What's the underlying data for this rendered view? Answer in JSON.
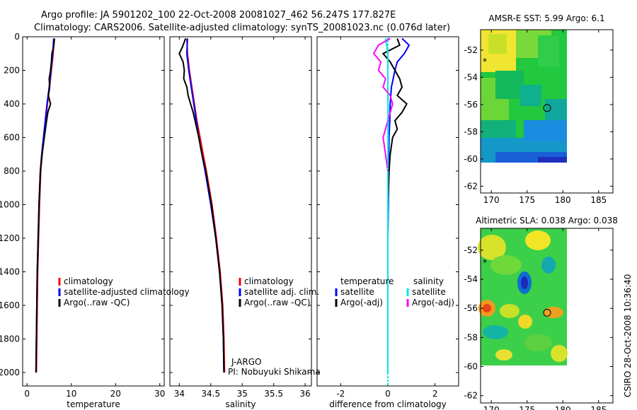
{
  "header": {
    "line1": "Argo profile: JA 5901202_100 22-Oct-2008 20081027_462 56.247S 177.827E",
    "line2": "Climatology: CARS2006. Satellite-adjusted climatology: synTS_20081023.nc (0.076d later)"
  },
  "timestamp": "CSIRO 28-Oct-2008 10:36:40",
  "colors": {
    "clim": "#ff0000",
    "sat": "#0000ff",
    "argo": "#000000",
    "sal_sat": "#00e5ee",
    "sal_argo": "#ff00ff"
  },
  "chart_data": [
    {
      "type": "line",
      "name": "temperature-profile",
      "xlabel": "temperature",
      "xlim": [
        -1,
        31
      ],
      "xticks": [
        "0",
        "10",
        "20",
        "30"
      ],
      "xtick_values": [
        0,
        10,
        20,
        30
      ],
      "ylim": [
        0,
        2080
      ],
      "yticks": [
        "0",
        "200",
        "400",
        "600",
        "800",
        "1000",
        "1200",
        "1400",
        "1600",
        "1800",
        "2000"
      ],
      "ytick_values": [
        0,
        200,
        400,
        600,
        800,
        1000,
        1200,
        1400,
        1600,
        1800,
        2000
      ],
      "legend": [
        "climatology",
        "satellite-adjusted climatology",
        "Argo(..raw -QC)"
      ],
      "series": [
        {
          "name": "climatology",
          "color": "#ff0000",
          "depth": [
            10,
            100,
            200,
            300,
            400,
            500,
            600,
            700,
            800,
            1000,
            1200,
            1400,
            1600,
            1800,
            2000
          ],
          "values": [
            6.1,
            5.9,
            5.5,
            5.1,
            4.6,
            4.2,
            3.8,
            3.4,
            3.1,
            2.8,
            2.6,
            2.4,
            2.3,
            2.2,
            2.1
          ]
        },
        {
          "name": "satellite-adjusted",
          "color": "#0000ff",
          "depth": [
            10,
            100,
            200,
            300,
            400,
            500,
            600,
            700,
            800,
            1000,
            1200,
            1400,
            1600,
            1800,
            2000
          ],
          "values": [
            6.0,
            5.8,
            5.4,
            5.0,
            4.5,
            4.1,
            3.7,
            3.3,
            3.0,
            2.7,
            2.5,
            2.3,
            2.2,
            2.1,
            2.0
          ]
        },
        {
          "name": "Argo(..raw -QC)",
          "color": "#000000",
          "depth": [
            10,
            60,
            100,
            150,
            200,
            250,
            300,
            350,
            400,
            450,
            500,
            600,
            700,
            800,
            1000,
            1200,
            1400,
            1600,
            1800,
            2000
          ],
          "values": [
            6.2,
            6.0,
            5.6,
            5.5,
            5.3,
            5.0,
            5.1,
            4.8,
            5.3,
            4.7,
            4.4,
            3.9,
            3.4,
            3.0,
            2.7,
            2.5,
            2.3,
            2.2,
            2.1,
            2.0
          ]
        }
      ]
    },
    {
      "type": "line",
      "name": "salinity-profile",
      "xlabel": "salinity",
      "xlim": [
        33.85,
        36.1
      ],
      "xticks": [
        "34",
        "34.5",
        "35",
        "35.5",
        "36"
      ],
      "xtick_values": [
        34,
        34.5,
        35,
        35.5,
        36
      ],
      "ylim": [
        0,
        2080
      ],
      "legend": [
        "climatology",
        "satellite adj. clim.",
        "Argo(..raw -QC)"
      ],
      "annotation": [
        "J-ARGO",
        "PI: Nobuyuki Shikama"
      ],
      "series": [
        {
          "name": "climatology",
          "color": "#ff0000",
          "depth": [
            10,
            100,
            200,
            300,
            400,
            500,
            600,
            700,
            800,
            1000,
            1200,
            1400,
            1600,
            1800,
            2000
          ],
          "values": [
            34.12,
            34.13,
            34.16,
            34.2,
            34.24,
            34.28,
            34.33,
            34.38,
            34.43,
            34.52,
            34.59,
            34.65,
            34.69,
            34.71,
            34.72
          ]
        },
        {
          "name": "satellite-adjusted",
          "color": "#0000ff",
          "depth": [
            10,
            100,
            200,
            300,
            400,
            500,
            600,
            700,
            800,
            1000,
            1200,
            1400,
            1600,
            1800,
            2000
          ],
          "values": [
            34.13,
            34.12,
            34.15,
            34.19,
            34.23,
            34.27,
            34.31,
            34.36,
            34.41,
            34.5,
            34.58,
            34.64,
            34.68,
            34.7,
            34.71
          ]
        },
        {
          "name": "Argo(..raw -QC)",
          "color": "#000000",
          "depth": [
            10,
            60,
            100,
            150,
            200,
            250,
            300,
            350,
            400,
            450,
            500,
            600,
            700,
            800,
            1000,
            1200,
            1400,
            1600,
            1800,
            2000
          ],
          "values": [
            34.1,
            34.05,
            34.0,
            34.06,
            34.08,
            34.07,
            34.12,
            34.14,
            34.18,
            34.22,
            34.25,
            34.31,
            34.36,
            34.42,
            34.51,
            34.58,
            34.64,
            34.68,
            34.7,
            34.71
          ]
        }
      ]
    },
    {
      "type": "line",
      "name": "difference-profile",
      "xlabel": "difference from climatology",
      "xlim": [
        -3,
        3
      ],
      "xticks": [
        "-2",
        "0",
        "2"
      ],
      "xtick_values": [
        -2,
        0,
        2
      ],
      "ylim": [
        0,
        2080
      ],
      "legend_left_title": "temperature",
      "legend_right_title": "salinity",
      "legend_left": [
        "satellite",
        "Argo(-adj)"
      ],
      "legend_right": [
        "satellite",
        "Argo(-adj)"
      ],
      "series": [
        {
          "name": "temperature satellite",
          "color": "#0000ff",
          "depth": [
            10,
            50,
            100,
            150,
            200,
            300,
            400,
            500,
            600,
            800,
            1000,
            1200,
            1400
          ],
          "values": [
            0.6,
            0.9,
            0.7,
            0.4,
            0.3,
            0.15,
            0.1,
            0.08,
            0.05,
            0.03,
            0.02,
            0.0,
            0.0
          ]
        },
        {
          "name": "temperature Argo",
          "color": "#000000",
          "depth": [
            10,
            50,
            100,
            150,
            200,
            250,
            300,
            350,
            400,
            450,
            500,
            550,
            600,
            700,
            800,
            900,
            1000,
            1200
          ],
          "values": [
            0.4,
            0.5,
            -0.2,
            0.1,
            0.3,
            0.5,
            0.6,
            0.4,
            0.8,
            0.6,
            0.3,
            0.4,
            0.2,
            0.1,
            0.05,
            0.03,
            0.0,
            0.0
          ]
        },
        {
          "name": "salinity satellite",
          "color": "#00e5ee",
          "depth": [
            10,
            50,
            100,
            200,
            300,
            500,
            800,
            1000,
            1200,
            1500,
            1800,
            2000
          ],
          "values": [
            -0.1,
            -0.05,
            0.0,
            0.0,
            0.0,
            0.02,
            0.0,
            0.0,
            0.0,
            0.0,
            0.0,
            0.0
          ]
        },
        {
          "name": "salinity Argo",
          "color": "#ff00ff",
          "depth": [
            10,
            50,
            100,
            150,
            200,
            250,
            300,
            350,
            400,
            500,
            600,
            700,
            800
          ],
          "values": [
            0.1,
            -0.4,
            -0.6,
            -0.3,
            -0.4,
            -0.1,
            -0.2,
            0.1,
            0.2,
            0.0,
            -0.2,
            -0.1,
            0.0
          ]
        }
      ]
    },
    {
      "type": "heatmap",
      "name": "amsre-sst-map",
      "title": "AMSR-E SST: 5.99 Argo: 6.1",
      "xlim": [
        168.5,
        187
      ],
      "ylim": [
        -62.5,
        -50.5
      ],
      "xticks": [
        "170",
        "175",
        "180",
        "185"
      ],
      "xtick_values": [
        170,
        175,
        180,
        185
      ],
      "yticks": [
        "-52",
        "-54",
        "-56",
        "-58",
        "-60",
        "-62"
      ],
      "ytick_values": [
        -52,
        -54,
        -56,
        -58,
        -60,
        -62
      ],
      "data_extent": {
        "lon": [
          168.5,
          180
        ],
        "lat": [
          -60,
          -50.5
        ]
      },
      "float_position": {
        "lon": 177.8,
        "lat": -56.25
      },
      "marker_position": {
        "lon": 168.8,
        "lat": -52.9
      }
    },
    {
      "type": "heatmap",
      "name": "altimetric-sla-map",
      "title": "Altimetric SLA: 0.038 Argo: 0.038",
      "xlim": [
        168.5,
        187
      ],
      "ylim": [
        -62.5,
        -50.5
      ],
      "xticks": [
        "170",
        "175",
        "180",
        "185"
      ],
      "xtick_values": [
        170,
        175,
        180,
        185
      ],
      "yticks": [
        "-52",
        "-54",
        "-56",
        "-58",
        "-60",
        "-62"
      ],
      "ytick_values": [
        -52,
        -54,
        -56,
        -58,
        -60,
        -62
      ],
      "data_extent": {
        "lon": [
          168.5,
          180
        ],
        "lat": [
          -60,
          -50.5
        ]
      },
      "float_position": {
        "lon": 177.8,
        "lat": -56.3
      },
      "marker_position": {
        "lon": 168.8,
        "lat": -52.9
      }
    }
  ]
}
